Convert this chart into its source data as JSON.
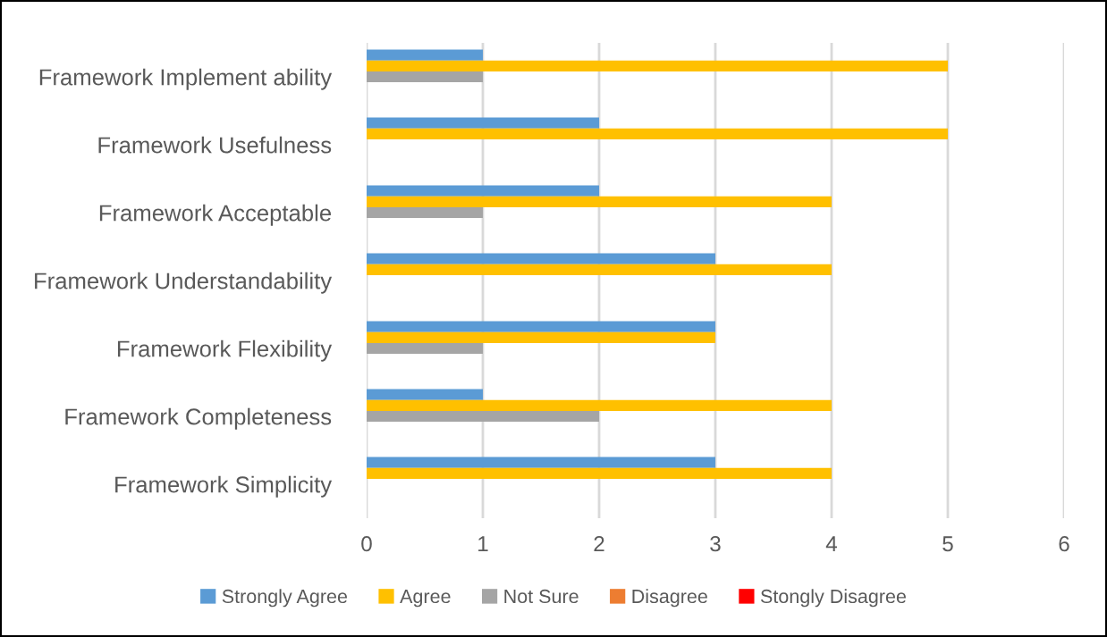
{
  "chart_data": {
    "type": "bar",
    "orientation": "horizontal",
    "categories": [
      "Framework Implement ability",
      "Framework Usefulness",
      "Framework Acceptable",
      "Framework Understandability",
      "Framework Flexibility",
      "Framework Completeness",
      "Framework Simplicity"
    ],
    "series": [
      {
        "name": "Strongly Agree",
        "color": "#5b9bd5",
        "values": [
          1,
          2,
          2,
          3,
          3,
          1,
          3
        ]
      },
      {
        "name": "Agree",
        "color": "#ffc000",
        "values": [
          5,
          5,
          4,
          4,
          3,
          4,
          4
        ]
      },
      {
        "name": "Not Sure",
        "color": "#a5a5a5",
        "values": [
          1,
          0,
          1,
          0,
          1,
          2,
          0
        ]
      },
      {
        "name": "Disagree",
        "color": "#ed7d31",
        "values": [
          0,
          0,
          0,
          0,
          0,
          0,
          0
        ]
      },
      {
        "name": "Stongly Disagree",
        "color": "#ff0000",
        "values": [
          0,
          0,
          0,
          0,
          0,
          0,
          0
        ]
      }
    ],
    "xlim": [
      0,
      6
    ],
    "xticks": [
      0,
      1,
      2,
      3,
      4,
      5,
      6
    ],
    "grid": "x",
    "legend": "bottom"
  }
}
